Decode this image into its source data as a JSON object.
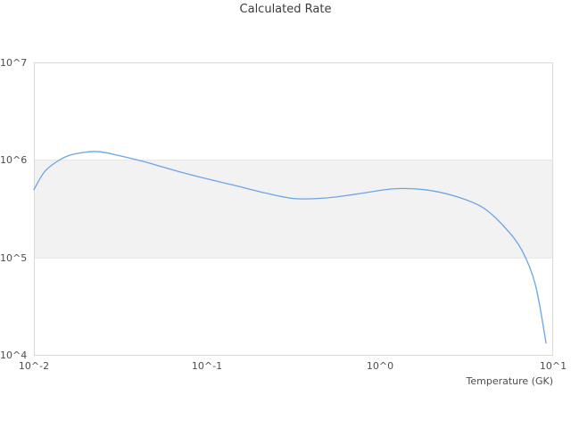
{
  "title": "Calculated Rate",
  "axes": {
    "x": {
      "title": "Temperature (GK)",
      "ticks": [
        "10^-2",
        "10^-1",
        "10^0",
        "10^1"
      ]
    },
    "y": {
      "ticks": [
        "10^7",
        "10^6",
        "10^5",
        "10^4"
      ]
    }
  },
  "colors": {
    "line": "#6BA5E3",
    "band_fill": "#F2F2F2",
    "band_edge": "#E6E6E6",
    "plot_border": "#D9D9D9",
    "title_text": "#3C3C3C",
    "tick_text": "#4D4D4D"
  },
  "chart_data": {
    "type": "line",
    "title": "Calculated Rate",
    "xlabel": "Temperature (GK)",
    "ylabel": "",
    "x_scale": "log",
    "y_scale": "log",
    "xlim": [
      0.01,
      10
    ],
    "ylim": [
      10000,
      10000000
    ],
    "x_tick_labels": [
      "10^-2",
      "10^-1",
      "10^0",
      "10^1"
    ],
    "y_tick_labels": [
      "10^4",
      "10^5",
      "10^6",
      "10^7"
    ],
    "shaded_band_y": [
      100000,
      1000000
    ],
    "grid": "horizontal decade band between 1e5 and 1e6 shaded light gray; no vertical gridlines",
    "legend": "none",
    "series": [
      {
        "name": "Calculated Rate",
        "x": [
          0.01,
          0.0115,
          0.0135,
          0.016,
          0.02,
          0.024,
          0.03,
          0.043,
          0.066,
          0.098,
          0.14,
          0.22,
          0.32,
          0.48,
          0.73,
          1.2,
          1.8,
          2.7,
          3.9,
          5.2,
          6.6,
          7.9,
          9.1
        ],
        "y": [
          500000,
          760000,
          960000,
          1120000,
          1210000,
          1220000,
          1130000,
          970000,
          780000,
          650000,
          560000,
          460000,
          405000,
          410000,
          450000,
          510000,
          500000,
          430000,
          330000,
          210000,
          120000,
          53000,
          13500
        ]
      }
    ]
  }
}
